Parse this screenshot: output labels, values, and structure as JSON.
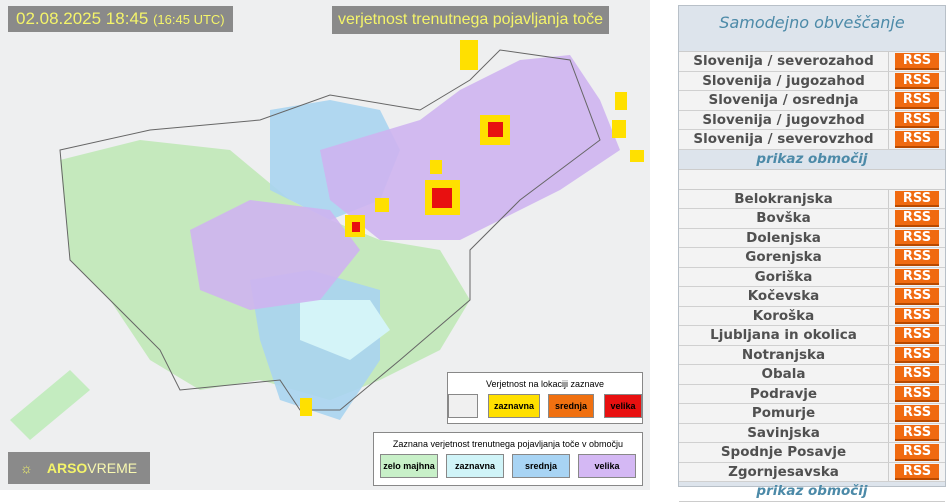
{
  "map": {
    "timestamp": "02.08.2025 18:45",
    "timestamp_utc": "(16:45 UTC)",
    "title": "verjetnost trenutnega pojavljanja toče",
    "logo": {
      "a": "ARSO",
      "b": "VREME"
    },
    "legend_location": {
      "title": "Verjetnost na lokaciji zaznave",
      "items": [
        {
          "label": "",
          "color": "#f0f0f0"
        },
        {
          "label": "zaznavna",
          "color": "#ffe000"
        },
        {
          "label": "srednja",
          "color": "#f07010"
        },
        {
          "label": "velika",
          "color": "#e81010"
        }
      ]
    },
    "legend_area": {
      "title": "Zaznana verjetnost trenutnega pojavljanja toče v območju",
      "items": [
        {
          "label": "zelo majhna",
          "color": "#c8f0c8"
        },
        {
          "label": "zaznavna",
          "color": "#d0f4f8"
        },
        {
          "label": "srednja",
          "color": "#a8d4f4"
        },
        {
          "label": "velika",
          "color": "#d4b8f4"
        }
      ]
    }
  },
  "panel": {
    "title": "Samodejno obveščanje",
    "rss_label": "RSS",
    "show_areas": "prikaz območij",
    "regions": [
      "Slovenija / severozahod",
      "Slovenija / jugozahod",
      "Slovenija / osrednja",
      "Slovenija / jugovzhod",
      "Slovenija / severovzhod"
    ],
    "areas": [
      "Belokranjska",
      "Bovška",
      "Dolenjska",
      "Gorenjska",
      "Goriška",
      "Kočevska",
      "Koroška",
      "Ljubljana in okolica",
      "Notranjska",
      "Obala",
      "Podravje",
      "Pomurje",
      "Savinjska",
      "Spodnje Posavje",
      "Zgornjesavska"
    ]
  }
}
